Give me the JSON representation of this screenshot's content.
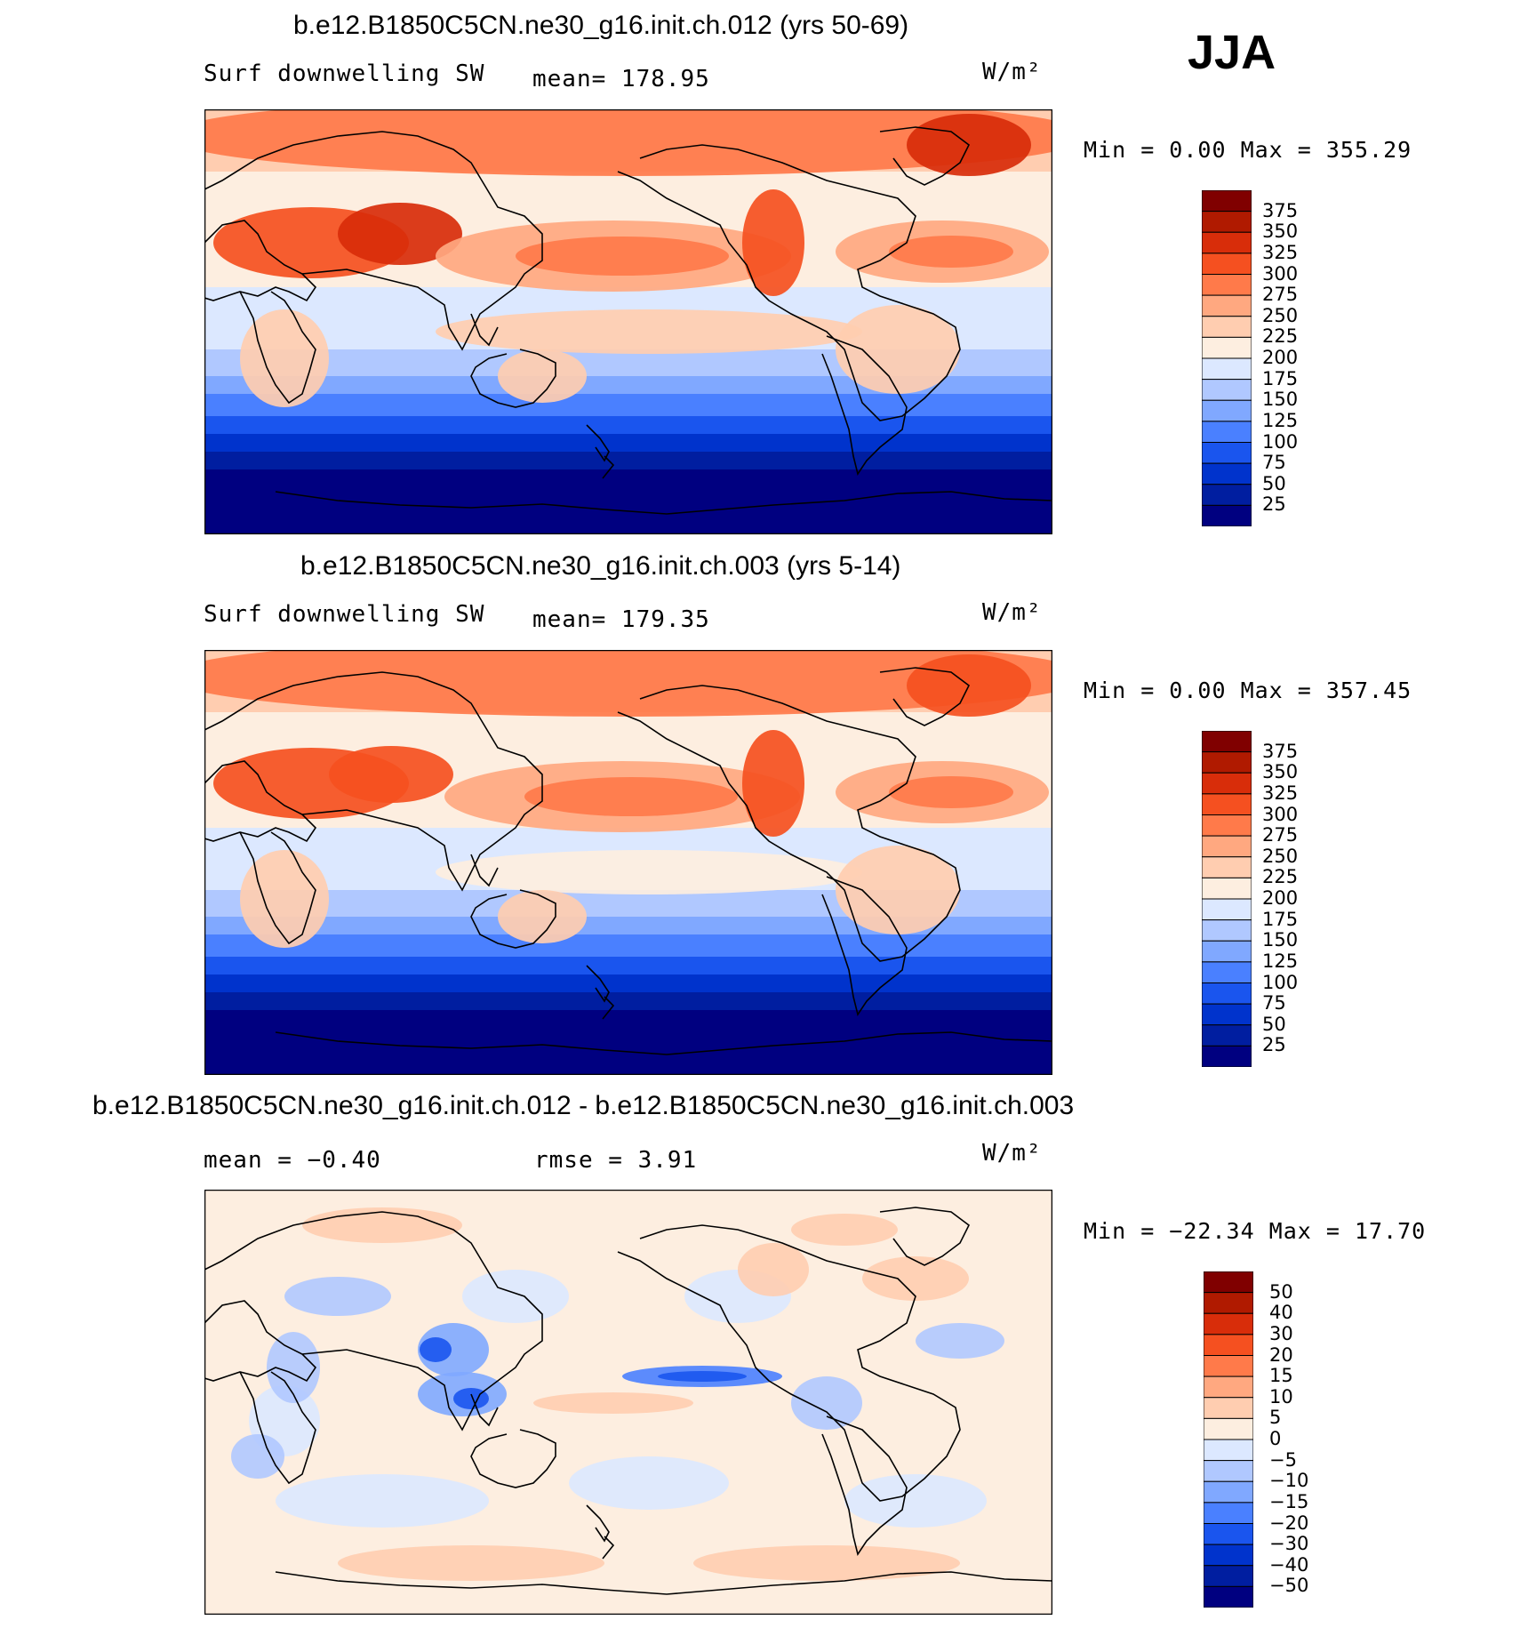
{
  "season": "JJA",
  "chart_data": [
    {
      "type": "heatmap",
      "title": "b.e12.B1850C5CN.ne30_g16.init.ch.012 (yrs 50-69)",
      "left_label": "Surf downwelling SW",
      "stat_label": "mean= 178.95",
      "units": "W/m²",
      "min_max": "Min =    0.00 Max  = 355.29",
      "colorbar_levels": [
        "375",
        "350",
        "325",
        "300",
        "275",
        "250",
        "225",
        "200",
        "175",
        "150",
        "125",
        "100",
        "75",
        "50",
        "25"
      ]
    },
    {
      "type": "heatmap",
      "title": "b.e12.B1850C5CN.ne30_g16.init.ch.003 (yrs 5-14)",
      "left_label": "Surf downwelling SW",
      "stat_label": "mean= 179.35",
      "units": "W/m²",
      "min_max": "Min =    0.00 Max  = 357.45",
      "colorbar_levels": [
        "375",
        "350",
        "325",
        "300",
        "275",
        "250",
        "225",
        "200",
        "175",
        "150",
        "125",
        "100",
        "75",
        "50",
        "25"
      ]
    },
    {
      "type": "heatmap",
      "title": "b.e12.B1850C5CN.ne30_g16.init.ch.012 - b.e12.B1850C5CN.ne30_g16.init.ch.003",
      "left_label": "mean =   −0.40",
      "stat_label": "rmse =    3.91",
      "units": "W/m²",
      "min_max": "Min = −22.34 Max =   17.70",
      "colorbar_levels": [
        "50",
        "40",
        "30",
        "20",
        "15",
        "10",
        "5",
        "0",
        "−5",
        "−10",
        "−15",
        "−20",
        "−30",
        "−40",
        "−50"
      ]
    }
  ],
  "colors": {
    "palette": [
      "#000080",
      "#001ea0",
      "#0033cc",
      "#1a55ee",
      "#4a80ff",
      "#80a8ff",
      "#b0c8ff",
      "#dce8ff",
      "#fdeee0",
      "#ffcdb0",
      "#ffa880",
      "#ff7a4a",
      "#f55020",
      "#d82d0a",
      "#b01a00",
      "#800000"
    ]
  }
}
